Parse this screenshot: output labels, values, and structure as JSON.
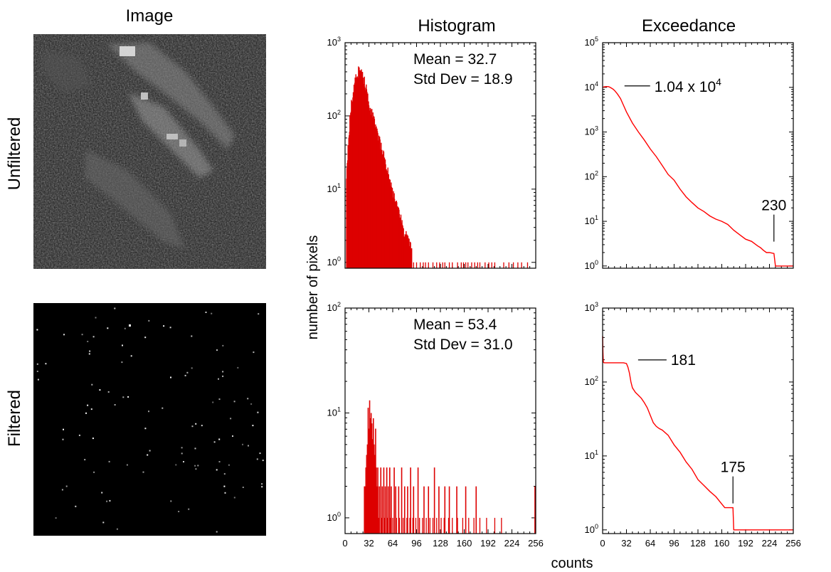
{
  "columns": {
    "image": "Image",
    "histogram": "Histogram",
    "exceedance": "Exceedance"
  },
  "rows": {
    "unfiltered": "Unfiltered",
    "filtered": "Filtered"
  },
  "axes": {
    "ylabel": "number of pixels",
    "xlabel": "counts"
  },
  "colors": {
    "series": "#ff0000",
    "fill": "#dd0000",
    "background": "#ffffff"
  },
  "chart_data": [
    {
      "id": "hist_unfiltered",
      "type": "bar",
      "title": "Histogram",
      "row": "Unfiltered",
      "xlim": [
        0,
        256
      ],
      "ylim_log10": [
        -0.08,
        3
      ],
      "y_scale": "log",
      "x_ticks": [
        0,
        32,
        64,
        96,
        128,
        160,
        192,
        224,
        256
      ],
      "x_tick_labels": [
        "",
        "",
        "",
        "",
        "",
        "",
        "",
        "",
        ""
      ],
      "y_ticks": [
        "10^0",
        "10^1",
        "10^2",
        "10^3"
      ],
      "annotations": [
        {
          "text": "Mean = 32.7"
        },
        {
          "text": "Std Dev = 18.9"
        }
      ],
      "envelope": [
        [
          2,
          1.2
        ],
        [
          5,
          1.75
        ],
        [
          8,
          2.1
        ],
        [
          10,
          2.25
        ],
        [
          12,
          2.35
        ],
        [
          14,
          2.48
        ],
        [
          16,
          2.55
        ],
        [
          18,
          2.6
        ],
        [
          19,
          2.62
        ],
        [
          22,
          2.58
        ],
        [
          26,
          2.45
        ],
        [
          30,
          2.3
        ],
        [
          34,
          2.1
        ],
        [
          38,
          1.95
        ],
        [
          42,
          1.8
        ],
        [
          46,
          1.65
        ],
        [
          50,
          1.5
        ],
        [
          54,
          1.35
        ],
        [
          58,
          1.2
        ],
        [
          62,
          1.02
        ],
        [
          66,
          0.9
        ],
        [
          70,
          0.72
        ],
        [
          74,
          0.6
        ],
        [
          78,
          0.45
        ],
        [
          82,
          0.35
        ],
        [
          86,
          0.25
        ],
        [
          90,
          0.12
        ]
      ],
      "sparse_counts_at_1": [
        92,
        96,
        101,
        105,
        108,
        112,
        118,
        123,
        127,
        131,
        134,
        140,
        144,
        151,
        156,
        159,
        162,
        165,
        170,
        174,
        178,
        181,
        188,
        193,
        197,
        201,
        213,
        220,
        226,
        232,
        237,
        245
      ]
    },
    {
      "id": "exc_unfiltered",
      "type": "line",
      "title": "Exceedance",
      "row": "Unfiltered",
      "xlim": [
        0,
        256
      ],
      "ylim_log10": [
        -0.05,
        5
      ],
      "y_scale": "log",
      "x_ticks": [
        0,
        32,
        64,
        96,
        128,
        160,
        192,
        224,
        256
      ],
      "x_tick_labels": [
        "",
        "",
        "",
        "",
        "",
        "",
        "",
        "",
        ""
      ],
      "y_ticks": [
        "10^0",
        "10^1",
        "10^2",
        "10^3",
        "10^4",
        "10^5"
      ],
      "x": [
        0,
        2,
        4,
        6,
        8,
        10,
        12,
        14,
        16,
        20,
        24,
        28,
        32,
        40,
        48,
        56,
        64,
        72,
        80,
        88,
        96,
        104,
        112,
        120,
        128,
        136,
        144,
        152,
        160,
        168,
        176,
        184,
        192,
        200,
        208,
        212,
        216,
        220,
        224,
        230,
        232,
        256
      ],
      "y_log10": [
        4.0,
        4.01,
        4.015,
        4.017,
        4.015,
        4.0,
        3.98,
        3.96,
        3.93,
        3.85,
        3.75,
        3.6,
        3.45,
        3.2,
        3.0,
        2.82,
        2.62,
        2.45,
        2.25,
        2.05,
        1.92,
        1.72,
        1.55,
        1.42,
        1.3,
        1.22,
        1.12,
        1.05,
        1.0,
        0.93,
        0.8,
        0.7,
        0.6,
        0.55,
        0.45,
        0.41,
        0.35,
        0.3,
        0.3,
        0.28,
        0.0,
        0.0
      ],
      "annotations": [
        {
          "text": "1.04 x 10",
          "sup": "4",
          "x": 16,
          "y_log10": 4.0
        },
        {
          "text": "230",
          "x": 230,
          "y_log10": 0.45
        }
      ]
    },
    {
      "id": "hist_filtered",
      "type": "bar",
      "title": "Histogram",
      "row": "Filtered",
      "xlim": [
        0,
        256
      ],
      "ylim_log10": [
        -0.15,
        2
      ],
      "y_scale": "log",
      "x_ticks": [
        0,
        32,
        64,
        96,
        128,
        160,
        192,
        224,
        256
      ],
      "x_tick_labels": [
        "0",
        "32",
        "64",
        "96",
        "128",
        "160",
        "192",
        "224",
        "256"
      ],
      "y_ticks": [
        "10^0",
        "10^1",
        "10^2"
      ],
      "annotations": [
        {
          "text": "Mean = 53.4"
        },
        {
          "text": "Std Dev = 31.0"
        }
      ],
      "bars": [
        [
          26,
          0.3
        ],
        [
          27,
          0.3
        ],
        [
          28,
          0.48
        ],
        [
          29,
          0.6
        ],
        [
          30,
          0.7
        ],
        [
          31,
          1.05
        ],
        [
          32,
          0.85
        ],
        [
          33,
          1.12
        ],
        [
          34,
          0.95
        ],
        [
          35,
          1.0
        ],
        [
          36,
          0.9
        ],
        [
          37,
          0.75
        ],
        [
          38,
          0.95
        ],
        [
          39,
          0.7
        ],
        [
          40,
          0.6
        ],
        [
          41,
          0.85
        ],
        [
          42,
          0.48
        ],
        [
          43,
          0.3
        ],
        [
          44,
          0.48
        ],
        [
          46,
          0.3
        ],
        [
          48,
          0.48
        ],
        [
          50,
          0.3
        ],
        [
          52,
          0.48
        ],
        [
          54,
          0.3
        ],
        [
          56,
          0.48
        ],
        [
          58,
          0.3
        ],
        [
          60,
          0.48
        ],
        [
          62,
          0.3
        ],
        [
          66,
          0.48
        ],
        [
          68,
          0.3
        ],
        [
          72,
          0.3
        ],
        [
          76,
          0.48
        ],
        [
          80,
          0.3
        ],
        [
          84,
          0.3
        ],
        [
          88,
          0.48
        ],
        [
          92,
          0.3
        ],
        [
          98,
          0.48
        ],
        [
          106,
          0.3
        ],
        [
          112,
          0.3
        ],
        [
          120,
          0.48
        ],
        [
          126,
          0.3
        ],
        [
          134,
          0.3
        ],
        [
          140,
          0.3
        ],
        [
          150,
          0.3
        ],
        [
          162,
          0.3
        ],
        [
          176,
          0.3
        ],
        [
          255,
          0.3
        ]
      ],
      "sparse_counts_at_1": [
        29,
        33,
        37,
        41,
        45,
        49,
        53,
        57,
        61,
        64,
        69,
        73,
        78,
        83,
        87,
        91,
        95,
        100,
        104,
        109,
        114,
        118,
        123,
        129,
        133,
        139,
        144,
        151,
        158,
        166,
        173,
        181,
        190,
        201,
        210,
        255
      ]
    },
    {
      "id": "exc_filtered",
      "type": "line",
      "title": "Exceedance",
      "row": "Filtered",
      "xlim": [
        0,
        256
      ],
      "ylim_log10": [
        -0.05,
        3
      ],
      "y_scale": "log",
      "x_ticks": [
        0,
        32,
        64,
        96,
        128,
        160,
        192,
        224,
        256
      ],
      "x_tick_labels": [
        "0",
        "32",
        "64",
        "96",
        "128",
        "160",
        "192",
        "224",
        "256"
      ],
      "y_ticks": [
        "10^0",
        "10^1",
        "10^2",
        "10^3"
      ],
      "x": [
        0,
        0.5,
        1,
        2,
        16,
        28,
        32,
        34,
        36,
        38,
        40,
        44,
        48,
        52,
        56,
        60,
        64,
        68,
        72,
        76,
        80,
        88,
        96,
        104,
        112,
        120,
        128,
        136,
        144,
        152,
        160,
        164,
        168,
        172,
        174,
        175,
        176,
        256
      ],
      "y_log10": [
        2.62,
        2.4,
        2.27,
        2.26,
        2.26,
        2.26,
        2.25,
        2.2,
        2.12,
        2.0,
        1.92,
        1.86,
        1.82,
        1.78,
        1.72,
        1.65,
        1.55,
        1.45,
        1.4,
        1.37,
        1.35,
        1.28,
        1.15,
        1.05,
        0.92,
        0.82,
        0.68,
        0.6,
        0.52,
        0.45,
        0.35,
        0.3,
        0.3,
        0.3,
        0.3,
        0.3,
        0.0,
        0.0
      ],
      "annotations": [
        {
          "text": "181",
          "x": 40,
          "y_log10": 2.26
        },
        {
          "text": "175",
          "x": 175,
          "y_log10": 0.3
        }
      ]
    }
  ]
}
